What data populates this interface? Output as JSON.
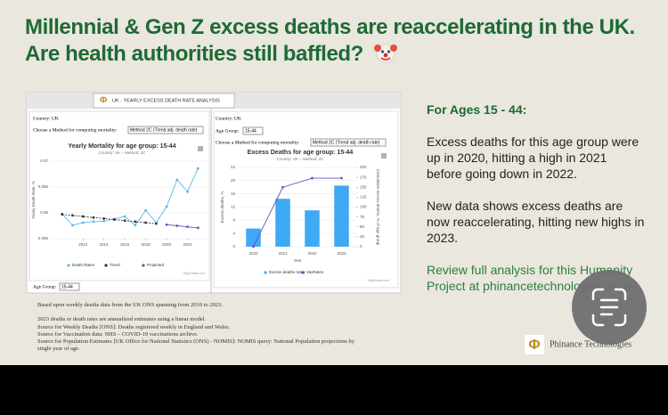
{
  "header": {
    "title": "Millennial & Gen Z excess deaths are reaccelerating in the UK. Are health authorities still baffled?"
  },
  "dashboard": {
    "tab": "UK - YEARLY EXCESS DEATH RATE ANALYSIS",
    "country": "Country: UK",
    "method_prompt": "Choose a Method for computing mortality:",
    "method": "Method 2C (Trend adj. death rate)",
    "age_group_label": "Age Group:",
    "age_group": "15-44",
    "credit": "Highcharts.com"
  },
  "chart_data": [
    {
      "type": "line",
      "title": "Yearly Mortality for age group: 15-44",
      "subtitle": "Country: UK – Method: 2C",
      "y_label": "Yearly Death Rate, %",
      "x": [
        2010,
        2011,
        2012,
        2013,
        2014,
        2015,
        2016,
        2017,
        2018,
        2019,
        2020,
        2021,
        2022,
        2023
      ],
      "xlim": [
        2009,
        2024
      ],
      "xticks": [
        2012,
        2014,
        2016,
        2018,
        2020,
        2022
      ],
      "ylim": [
        0.055,
        0.07
      ],
      "yticks": [
        0.055,
        0.06,
        0.065,
        0.07
      ],
      "grid": true,
      "series": [
        {
          "name": "Death Rates",
          "color": "#5bb8ec",
          "style": "solid",
          "values": [
            0.0598,
            0.0576,
            0.0581,
            0.0583,
            0.0584,
            0.0588,
            0.0593,
            0.0576,
            0.0605,
            0.0581,
            0.0612,
            0.0664,
            0.0641,
            0.0686
          ]
        },
        {
          "name": "Trend",
          "color": "#333333",
          "style": "dashed",
          "values": [
            0.0597,
            0.0595,
            0.0593,
            0.0591,
            0.0589,
            0.0587,
            0.0585,
            0.0583,
            0.0581,
            0.0579,
            null,
            null,
            null,
            null
          ]
        },
        {
          "name": "Projected",
          "color": "#6a4fc0",
          "style": "solid",
          "values": [
            null,
            null,
            null,
            null,
            null,
            null,
            null,
            null,
            null,
            null,
            0.0577,
            0.0575,
            0.0573,
            0.0571
          ]
        }
      ]
    },
    {
      "type": "bar",
      "title": "Excess Deaths for age group: 15-44",
      "subtitle": "Country: UK – Method: 2C",
      "x_label": "Year",
      "y_label": "Excess deaths, %",
      "y2_label": "Cumulative excess deaths, % of age group",
      "categories": [
        "2020",
        "2021",
        "2022",
        "2023"
      ],
      "ylim": [
        0,
        24
      ],
      "yticks": [
        0,
        4,
        8,
        12,
        16,
        20,
        24
      ],
      "y2lim": [
        0,
        200
      ],
      "y2ticks": [
        0,
        25,
        50,
        75,
        100,
        125,
        150,
        175,
        200
      ],
      "grid": true,
      "series": [
        {
          "name": "Excess deaths rates",
          "color": "#3fa9f5",
          "kind": "bar",
          "values": [
            5.5,
            14.5,
            11,
            18.5
          ]
        },
        {
          "name": "VaxRates",
          "color": "#6a4fc0",
          "kind": "line",
          "axis": "y2",
          "values": [
            0,
            150,
            173,
            173
          ]
        }
      ]
    }
  ],
  "notes": [
    "Based upon weekly deaths data from the UK ONS spanning from 2010 to 2023.",
    "2023 deaths or death rates are annualized estimates using a linear model.",
    "Source for Weekly Deaths [ONS]: Deaths registered weekly in England and Wales.",
    "Source for Vaccination data: NHS – COVID-19 vaccinations archive.",
    "Source for Population Estimates [UK Office for National Statistics (ONS) - NOMIS]: NOMIS query: National Population projections by single year of age."
  ],
  "sidebar": {
    "heading": "For Ages 15 - 44:",
    "paragraphs": [
      "Excess deaths for this age group were up in 2020, hitting a high in 2021 before going down in 2022.",
      "New data shows excess deaths are now reaccelerating, hitting new highs in 2023."
    ],
    "link": "Review full analysis for this Humanity Project at phinancetechnologies.com"
  },
  "logo": "Phinance Technologies"
}
